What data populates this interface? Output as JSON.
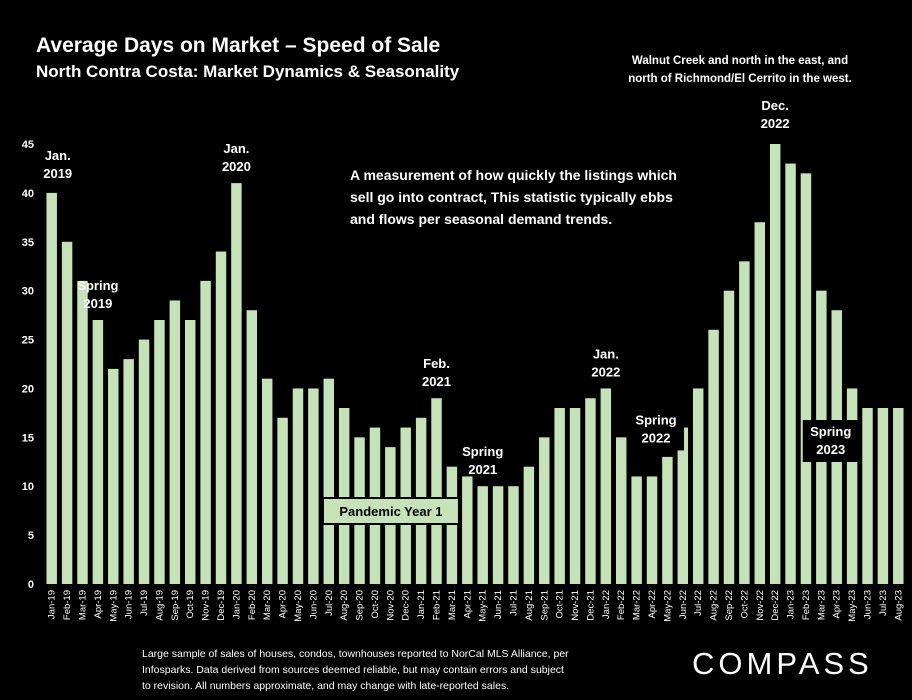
{
  "header": {
    "title": "Average Days on Market – Speed of Sale",
    "subtitle": "North Contra Costa: Market Dynamics & Seasonality",
    "region_line1": "Walnut Creek and north in the east, and",
    "region_line2": "north of Richmond/El Cerrito in the west."
  },
  "description": {
    "line1": "A measurement of how quickly the listings which",
    "line2": "sell go into contract, This statistic typically ebbs",
    "line3": "and flows per seasonal demand trends."
  },
  "footnote": {
    "line1": "Large sample of sales of houses, condos, townhouses reported to NorCal MLS Alliance, per",
    "line2": "Infosparks. Data derived from sources deemed reliable, but may contain errors and subject",
    "line3": "to revision. All numbers approximate, and may change with late-reported sales."
  },
  "brand": {
    "logo_text": "COMPASS"
  },
  "colors": {
    "bar": "#c6e2b8",
    "background": "#000000",
    "text": "#ffffff",
    "label_box": "#000000",
    "pandemic_box": "#c6e2b8"
  },
  "chart_data": {
    "type": "bar",
    "ylim": [
      0,
      45
    ],
    "yticks": [
      0,
      5,
      10,
      15,
      20,
      25,
      30,
      35,
      40,
      45
    ],
    "grid": false,
    "categories": [
      "Jan-19",
      "Feb-19",
      "Mar-19",
      "Apr-19",
      "May-19",
      "Jun-19",
      "Jul-19",
      "Aug-19",
      "Sep-19",
      "Oct-19",
      "Nov-19",
      "Dec-19",
      "Jan-20",
      "Feb-20",
      "Mar-20",
      "Apr-20",
      "May-20",
      "Jun-20",
      "Jul-20",
      "Aug-20",
      "Sep-20",
      "Oct-20",
      "Nov-20",
      "Dec-20",
      "Jan-21",
      "Feb-21",
      "Mar-21",
      "Apr-21",
      "May-21",
      "Jun-21",
      "Jul-21",
      "Aug-21",
      "Sep-21",
      "Oct-21",
      "Nov-21",
      "Dec-21",
      "Jan-22",
      "Feb-22",
      "Mar-22",
      "Apr-22",
      "May-22",
      "Jun-22",
      "Jul-22",
      "Aug-22",
      "Sep-22",
      "Oct-22",
      "Nov-22",
      "Dec-22",
      "Jan-23",
      "Feb-23",
      "Mar-23",
      "Apr-23",
      "May-23",
      "Jun-23",
      "Jul-23",
      "Aug-23"
    ],
    "values": [
      40,
      35,
      31,
      27,
      22,
      23,
      25,
      27,
      29,
      27,
      31,
      34,
      41,
      28,
      21,
      17,
      20,
      20,
      21,
      18,
      15,
      16,
      14,
      16,
      17,
      19,
      12,
      11,
      10,
      10,
      10,
      12,
      15,
      18,
      18,
      19,
      20,
      15,
      11,
      11,
      13,
      16,
      20,
      26,
      30,
      33,
      37,
      45,
      43,
      42,
      30,
      28,
      20,
      18,
      18,
      18
    ],
    "annotations": [
      {
        "label_lines": [
          "Jan.",
          "2019"
        ],
        "category": "Jan-19",
        "style": "plain"
      },
      {
        "label_lines": [
          "Spring",
          "2019"
        ],
        "category": "Apr-19",
        "style": "plain"
      },
      {
        "label_lines": [
          "Jan.",
          "2020"
        ],
        "category": "Jan-20",
        "style": "plain"
      },
      {
        "label_lines": [
          "Feb.",
          "2021"
        ],
        "category": "Feb-21",
        "style": "plain"
      },
      {
        "label_lines": [
          "Spring",
          "2021"
        ],
        "category": "May-21",
        "style": "plain"
      },
      {
        "label_lines": [
          "Jan.",
          "2022"
        ],
        "category": "Jan-22",
        "style": "plain"
      },
      {
        "label_lines": [
          "Spring",
          "2022"
        ],
        "category": "Apr-22",
        "style": "boxed"
      },
      {
        "label_lines": [
          "Dec.",
          "2022"
        ],
        "category": "Dec-22",
        "style": "plain"
      },
      {
        "label_lines": [
          "Spring",
          "2023"
        ],
        "category": "Apr-23",
        "style": "boxed"
      },
      {
        "label_lines": [
          "Pandemic Year 1"
        ],
        "category": "Oct-20",
        "style": "pandemic"
      }
    ]
  }
}
